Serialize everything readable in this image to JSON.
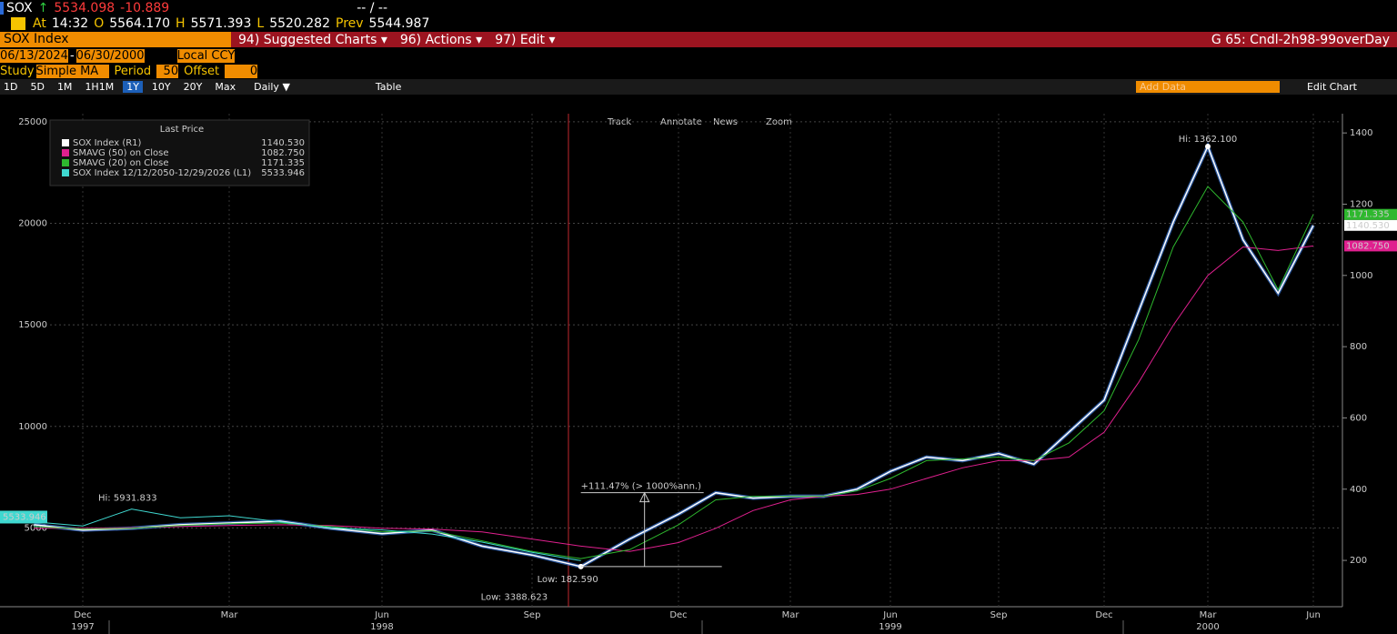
{
  "quote": {
    "ticker": "SOX",
    "arrow": "↑",
    "last": "5534.098",
    "change": "-10.889",
    "bidask": "-- / --"
  },
  "quote_detail": {
    "at": "At",
    "time": "14:32",
    "o_label": "O",
    "open": "5564.170",
    "h_label": "H",
    "high": "5571.393",
    "l_label": "L",
    "low": "5520.282",
    "prev_label": "Prev",
    "prev": "5544.987"
  },
  "menu": {
    "security": "SOX Index",
    "items": [
      "94) Suggested Charts ▾",
      "96) Actions ▾",
      "97) Edit ▾"
    ],
    "chart_name": "G 65: Cndl-2h98-99overDay"
  },
  "range": {
    "start": "06/13/2024",
    "dash": "-",
    "end": "06/30/2000",
    "currency": "Local CCY"
  },
  "study": {
    "label": "Study",
    "type": "Simple MA",
    "period_label": "Period",
    "period": "50",
    "offset_label": "Offset",
    "offset": "0"
  },
  "toolbar": {
    "periods": [
      "1D",
      "5D",
      "1M",
      "1H1M",
      "1Y",
      "10Y",
      "20Y",
      "Max"
    ],
    "active_index": 4,
    "frequency": "Daily ▼",
    "table": "Table",
    "add_data": "Add Data",
    "edit_chart": "Edit Chart"
  },
  "chart_tools": [
    "Track",
    "Annotate",
    "News",
    "Zoom"
  ],
  "chart_data": {
    "type": "line",
    "legend_title": "Last Price",
    "categories": [
      null,
      "Dec",
      null,
      null,
      "Mar",
      null,
      null,
      "Jun",
      null,
      null,
      "Sep",
      null,
      null,
      "Dec",
      null,
      null,
      "Mar",
      null,
      null,
      "Jun",
      null,
      null,
      "Sep",
      null,
      null,
      "Dec",
      null,
      null,
      "Mar",
      null,
      null,
      "Jun"
    ],
    "years": [
      {
        "value": 1,
        "label": "1997"
      },
      {
        "value": 7,
        "label": "1998"
      },
      {
        "value": 19,
        "label": "1999"
      },
      {
        "value": 28,
        "label": "2000"
      }
    ],
    "ylim": [
      1120,
      25400
    ],
    "yticks": [
      5000,
      10000,
      15000,
      20000,
      25000
    ],
    "y2lim": [
      70,
      1454
    ],
    "y2ticks": [
      200,
      400,
      600,
      800,
      1000,
      1200,
      1400
    ],
    "grid": true,
    "series": [
      {
        "name": "SOX Index (R1)",
        "color": "#ffffff",
        "axis": "y2",
        "last": {
          "value": 1140.53,
          "label": "1140.530"
        },
        "values": [
          300,
          285,
          290,
          300,
          305,
          310,
          290,
          275,
          285,
          240,
          215,
          182.59,
          260,
          330,
          390,
          375,
          380,
          380,
          400,
          450,
          490,
          480,
          500,
          470,
          560,
          650,
          900,
          1150,
          1362.1,
          1100,
          950,
          1140.53
        ]
      },
      {
        "name": "SMAVG (50) on Close",
        "color": "#e0208f",
        "axis": "y2",
        "last": {
          "value": 1082.75,
          "label": "1082.750"
        },
        "values": [
          290,
          290,
          292,
          295,
          298,
          300,
          298,
          290,
          288,
          280,
          260,
          240,
          225,
          250,
          290,
          340,
          370,
          380,
          385,
          400,
          430,
          460,
          480,
          480,
          490,
          560,
          700,
          860,
          1000,
          1080,
          1070,
          1082.75
        ]
      },
      {
        "name": "SMAVG (20) on Close",
        "color": "#2eb82e",
        "axis": "y2",
        "last": {
          "value": 1171.335,
          "label": "1171.335"
        },
        "values": [
          295,
          288,
          290,
          298,
          303,
          305,
          295,
          280,
          283,
          255,
          225,
          205,
          230,
          300,
          370,
          380,
          380,
          380,
          395,
          430,
          480,
          485,
          490,
          480,
          530,
          620,
          820,
          1080,
          1250,
          1150,
          960,
          1171.335
        ]
      },
      {
        "name": "SOX Index 12/12/2050-12/29/2026 (L1)",
        "color": "#3fd8d0",
        "axis": "y",
        "last": 5533.946,
        "values": [
          5300,
          5100,
          5931.833,
          5500,
          5600,
          5300,
          5000,
          4900,
          4700,
          4300,
          3800,
          3388.623,
          null,
          null,
          null,
          null,
          null,
          null,
          null,
          null,
          null,
          null,
          null,
          null,
          null,
          null,
          null,
          null,
          null,
          null,
          null,
          null
        ]
      }
    ],
    "annotations": {
      "hi_r": "Hi: 1362.100",
      "low_r": "Low: 182.590",
      "hi_l": "Hi: 5931.833",
      "low_l": "Low: 3388.623",
      "change": "+111.47% (> 1000%ann.)"
    }
  }
}
